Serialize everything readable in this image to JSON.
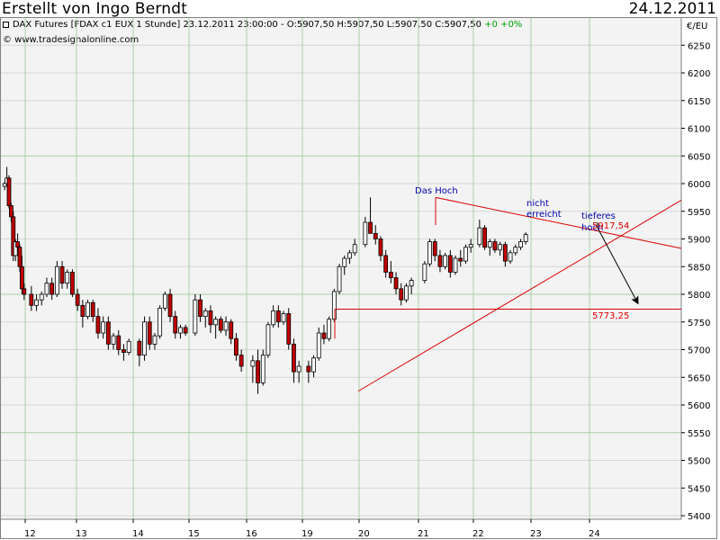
{
  "header": {
    "author": "Erstellt von Ingo Berndt",
    "date": "24.12.2011"
  },
  "chart_info": {
    "instrument": "DAX Futures [FDAX c1 EUX  1 Stunde] 23.12.2011 23:00:00 - O:5907,50 H:5907,50 L:5907,50 C:5907,50",
    "change": "+0 +0%",
    "copyright": "© www.tradesignalonline.com",
    "unit": "€/EU"
  },
  "chart_data": {
    "type": "candlestick",
    "interval": "1 Stunde",
    "y_axis": {
      "ticks": [
        5400,
        5450,
        5500,
        5550,
        5600,
        5650,
        5700,
        5750,
        5800,
        5850,
        5900,
        5950,
        6000,
        6050,
        6100,
        6150,
        6200,
        6250
      ],
      "range": [
        5390,
        6293
      ],
      "strong_grid": [
        5550,
        5800,
        6050
      ]
    },
    "x_axis": {
      "labels": [
        "12",
        "13",
        "14",
        "15",
        "16",
        "19",
        "20",
        "21",
        "22",
        "23",
        "24"
      ]
    },
    "colors": {
      "up": "#ffffff",
      "down": "#c00000",
      "wick": "#000000",
      "annotation_line": "#dd0000",
      "annotation_text": "#0000aa",
      "grid_major": "#a8d0a8",
      "grid_minor": "#d6d6d6"
    },
    "ohlc_approx": [
      {
        "date": "12",
        "values": [
          [
            5995,
            6003,
            5988,
            6000
          ],
          [
            6000,
            6030,
            5995,
            6010
          ],
          [
            6010,
            6015,
            5955,
            5960
          ],
          [
            5960,
            5965,
            5930,
            5940
          ],
          [
            5940,
            5950,
            5860,
            5870
          ],
          [
            5870,
            5900,
            5860,
            5895
          ],
          [
            5895,
            5910,
            5880,
            5885
          ],
          [
            5885,
            5890,
            5840,
            5850
          ],
          [
            5850,
            5870,
            5800,
            5810
          ],
          [
            5810,
            5820,
            5790,
            5800
          ]
        ]
      },
      {
        "date": "13",
        "values": [
          [
            5800,
            5815,
            5770,
            5780
          ],
          [
            5780,
            5800,
            5770,
            5790
          ],
          [
            5790,
            5805,
            5780,
            5800
          ],
          [
            5800,
            5830,
            5795,
            5820
          ],
          [
            5820,
            5830,
            5790,
            5800
          ],
          [
            5800,
            5860,
            5795,
            5850
          ],
          [
            5850,
            5860,
            5810,
            5820
          ],
          [
            5820,
            5845,
            5810,
            5840
          ],
          [
            5840,
            5845,
            5795,
            5800
          ],
          [
            5800,
            5810,
            5770,
            5780
          ]
        ]
      },
      {
        "date": "14",
        "values": [
          [
            5780,
            5790,
            5740,
            5760
          ],
          [
            5760,
            5790,
            5755,
            5785
          ],
          [
            5785,
            5790,
            5750,
            5760
          ],
          [
            5760,
            5775,
            5720,
            5730
          ],
          [
            5730,
            5760,
            5720,
            5750
          ],
          [
            5750,
            5760,
            5700,
            5710
          ],
          [
            5710,
            5730,
            5700,
            5725
          ],
          [
            5725,
            5735,
            5690,
            5700
          ],
          [
            5700,
            5710,
            5680,
            5695
          ],
          [
            5695,
            5720,
            5690,
            5715
          ]
        ]
      },
      {
        "date": "15",
        "values": [
          [
            5715,
            5720,
            5670,
            5690
          ],
          [
            5690,
            5760,
            5680,
            5750
          ],
          [
            5750,
            5760,
            5700,
            5710
          ],
          [
            5710,
            5730,
            5700,
            5725
          ],
          [
            5725,
            5780,
            5720,
            5775
          ],
          [
            5775,
            5805,
            5770,
            5800
          ],
          [
            5800,
            5810,
            5750,
            5760
          ],
          [
            5760,
            5770,
            5720,
            5730
          ],
          [
            5730,
            5745,
            5720,
            5740
          ],
          [
            5740,
            5745,
            5725,
            5730
          ]
        ]
      },
      {
        "date": "16",
        "values": [
          [
            5730,
            5800,
            5725,
            5790
          ],
          [
            5790,
            5800,
            5750,
            5760
          ],
          [
            5760,
            5775,
            5740,
            5770
          ],
          [
            5770,
            5780,
            5730,
            5745
          ],
          [
            5745,
            5760,
            5720,
            5755
          ],
          [
            5755,
            5760,
            5730,
            5735
          ],
          [
            5735,
            5760,
            5725,
            5750
          ],
          [
            5750,
            5755,
            5710,
            5720
          ],
          [
            5720,
            5730,
            5680,
            5690
          ],
          [
            5690,
            5700,
            5660,
            5670
          ]
        ]
      },
      {
        "date": "19",
        "values": [
          [
            5670,
            5690,
            5640,
            5680
          ],
          [
            5680,
            5700,
            5620,
            5640
          ],
          [
            5640,
            5700,
            5635,
            5690
          ],
          [
            5690,
            5750,
            5685,
            5745
          ],
          [
            5745,
            5780,
            5740,
            5770
          ],
          [
            5770,
            5780,
            5740,
            5750
          ],
          [
            5750,
            5770,
            5745,
            5765
          ],
          [
            5765,
            5775,
            5700,
            5710
          ],
          [
            5710,
            5720,
            5640,
            5660
          ],
          [
            5660,
            5680,
            5640,
            5670
          ]
        ]
      },
      {
        "date": "20",
        "values": [
          [
            5670,
            5680,
            5640,
            5660
          ],
          [
            5660,
            5690,
            5650,
            5685
          ],
          [
            5685,
            5740,
            5680,
            5730
          ],
          [
            5730,
            5745,
            5710,
            5720
          ],
          [
            5720,
            5760,
            5715,
            5755
          ],
          [
            5755,
            5810,
            5750,
            5805
          ],
          [
            5805,
            5855,
            5800,
            5850
          ],
          [
            5850,
            5870,
            5835,
            5865
          ],
          [
            5865,
            5880,
            5855,
            5875
          ],
          [
            5875,
            5900,
            5870,
            5890
          ]
        ]
      },
      {
        "date": "21",
        "values": [
          [
            5890,
            5940,
            5885,
            5930
          ],
          [
            5930,
            5975,
            5920,
            5910
          ],
          [
            5910,
            5925,
            5890,
            5900
          ],
          [
            5900,
            5905,
            5860,
            5870
          ],
          [
            5870,
            5880,
            5830,
            5840
          ],
          [
            5840,
            5860,
            5820,
            5830
          ],
          [
            5830,
            5840,
            5800,
            5810
          ],
          [
            5810,
            5820,
            5780,
            5790
          ],
          [
            5790,
            5820,
            5785,
            5815
          ],
          [
            5815,
            5830,
            5800,
            5825
          ]
        ]
      },
      {
        "date": "22",
        "values": [
          [
            5825,
            5860,
            5820,
            5855
          ],
          [
            5855,
            5900,
            5850,
            5895
          ],
          [
            5895,
            5900,
            5860,
            5870
          ],
          [
            5870,
            5880,
            5840,
            5850
          ],
          [
            5850,
            5875,
            5845,
            5870
          ],
          [
            5870,
            5880,
            5830,
            5840
          ],
          [
            5840,
            5870,
            5835,
            5865
          ],
          [
            5865,
            5880,
            5850,
            5860
          ],
          [
            5860,
            5890,
            5855,
            5885
          ],
          [
            5885,
            5900,
            5875,
            5890
          ]
        ]
      },
      {
        "date": "23",
        "values": [
          [
            5890,
            5935,
            5885,
            5920
          ],
          [
            5920,
            5925,
            5880,
            5885
          ],
          [
            5885,
            5900,
            5870,
            5895
          ],
          [
            5895,
            5900,
            5875,
            5880
          ],
          [
            5880,
            5895,
            5870,
            5890
          ],
          [
            5890,
            5895,
            5850,
            5860
          ],
          [
            5860,
            5880,
            5855,
            5875
          ],
          [
            5875,
            5890,
            5870,
            5885
          ],
          [
            5885,
            5900,
            5880,
            5895
          ],
          [
            5895,
            5912,
            5890,
            5908
          ]
        ]
      }
    ],
    "annotations": [
      {
        "text": "Das Hoch"
      },
      {
        "text": "nicht"
      },
      {
        "text": "erreicht"
      },
      {
        "text": "tieferes"
      },
      {
        "text": "hoch"
      },
      {
        "text": "5917,54",
        "value": 5917.54
      },
      {
        "text": "5773,25",
        "value": 5773.25
      }
    ]
  }
}
